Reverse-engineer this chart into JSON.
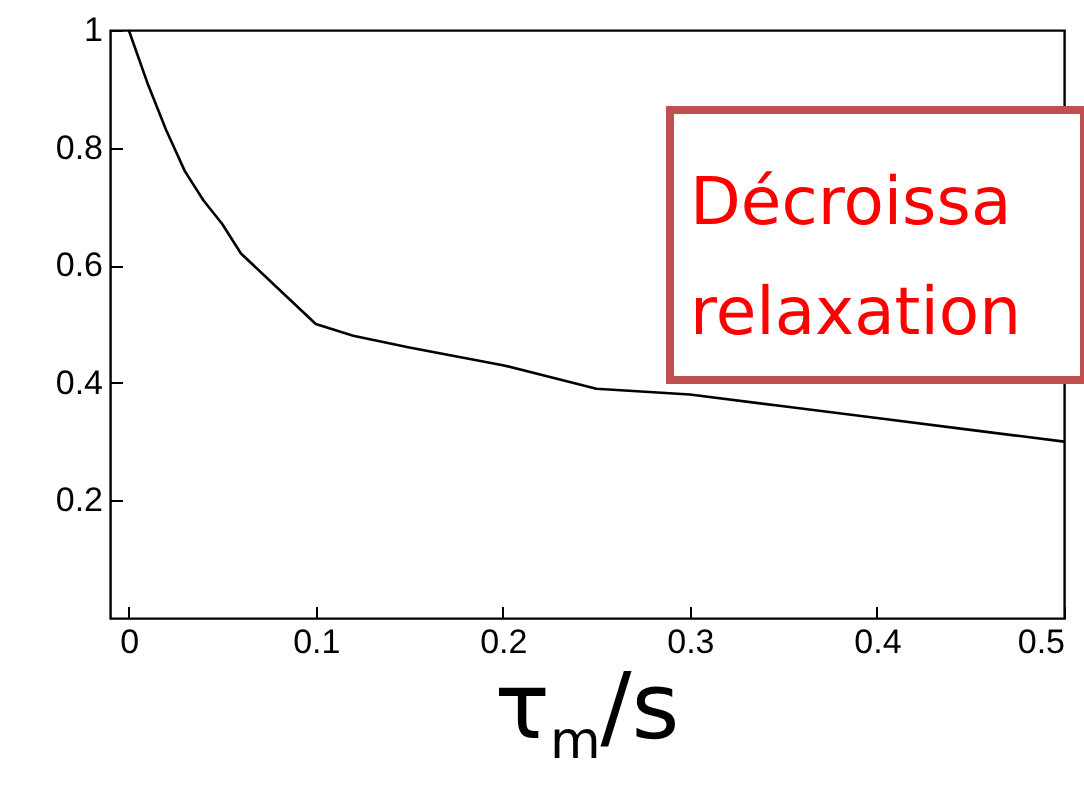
{
  "chart_data": {
    "type": "line",
    "xlabel": "τ$_{m}$/s",
    "x": [
      0,
      0.01,
      0.02,
      0.03,
      0.04,
      0.05,
      0.06,
      0.08,
      0.1,
      0.12,
      0.15,
      0.2,
      0.25,
      0.3,
      0.35,
      0.4,
      0.45,
      0.5
    ],
    "series": [
      {
        "color": "#000000",
        "values": [
          1,
          0.91,
          0.83,
          0.76,
          0.71,
          0.67,
          0.62,
          0.56,
          0.5,
          0.48,
          0.46,
          0.43,
          0.39,
          0.38,
          0.36,
          0.34,
          0.32,
          0.3
        ]
      }
    ],
    "xlim": [
      -0.01,
      0.5
    ],
    "ylim": [
      0,
      1
    ],
    "xticks": [
      0,
      0.1,
      0.2,
      0.3,
      0.4,
      0.5
    ],
    "yticks": [
      0.2,
      0.4,
      0.6,
      0.8,
      1
    ],
    "annotations": [
      "Décroissa",
      "relaxation"
    ],
    "grid": false,
    "marker": "none",
    "line_style": "solid"
  }
}
